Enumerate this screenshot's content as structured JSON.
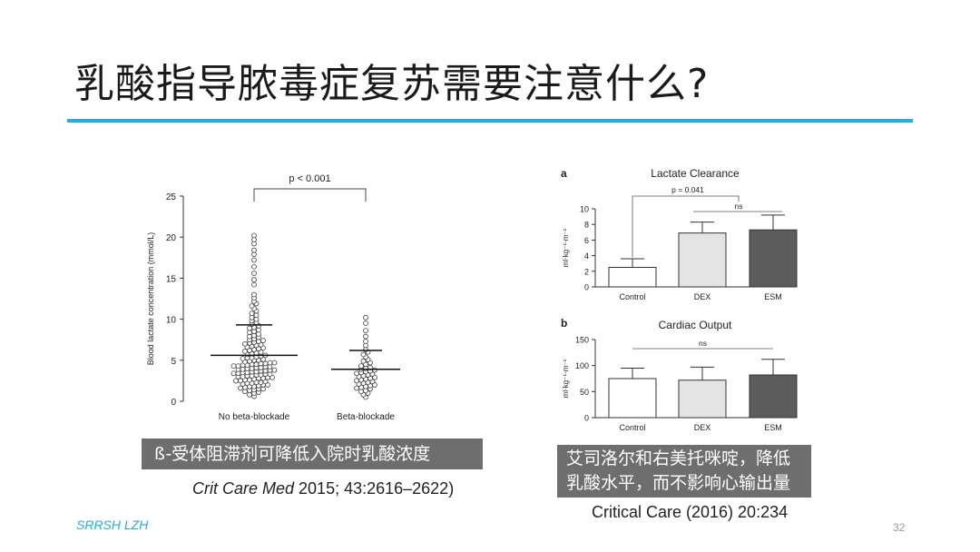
{
  "slide": {
    "title": "乳酸指导脓毒症复苏需要注意什么?",
    "accent_color": "#2da9d8",
    "footer": "SRRSH LZH",
    "footer_color": "#2da9d8",
    "page_number": "32"
  },
  "left_panel": {
    "caption": "ß-受体阻滞剂可降低入院时乳酸浓度",
    "citation_journal": "Crit Care Med",
    "citation_rest": " 2015; 43:2616–2622)"
  },
  "right_panel": {
    "caption_line1": "艾司洛尔和右美托咪啶，降低",
    "caption_line2": "乳酸水平，而不影响心输出量",
    "citation": "Critical Care (2016) 20:234"
  },
  "chart_data": [
    {
      "type": "scatter",
      "ylabel": "Blood lactate concentration (mmol/L)",
      "ylim": [
        0,
        25
      ],
      "yticks": [
        "0",
        "5",
        "10",
        "15",
        "20",
        "25"
      ],
      "categories": [
        "No beta-blockade",
        "Beta-blockade"
      ],
      "annotation": "p < 0.001",
      "groups": [
        {
          "category": "No beta-blockade",
          "mean": 5.6,
          "upper": 9.3,
          "points": [
            0.6,
            0.8,
            1.0,
            1.1,
            1.2,
            1.3,
            1.4,
            1.5,
            1.5,
            1.6,
            1.7,
            1.8,
            1.8,
            1.9,
            2.0,
            2.0,
            2.1,
            2.2,
            2.2,
            2.3,
            2.3,
            2.4,
            2.5,
            2.5,
            2.6,
            2.6,
            2.7,
            2.8,
            2.8,
            2.9,
            2.9,
            3.0,
            3.0,
            3.1,
            3.1,
            3.2,
            3.2,
            3.3,
            3.3,
            3.4,
            3.4,
            3.5,
            3.5,
            3.6,
            3.6,
            3.7,
            3.7,
            3.8,
            3.8,
            3.9,
            3.9,
            4.0,
            4.0,
            4.1,
            4.1,
            4.2,
            4.2,
            4.3,
            4.3,
            4.4,
            4.4,
            4.5,
            4.5,
            4.6,
            4.6,
            4.7,
            4.7,
            4.8,
            4.9,
            5.0,
            5.0,
            5.1,
            5.2,
            5.3,
            5.3,
            5.4,
            5.5,
            5.6,
            5.7,
            5.8,
            5.9,
            6.0,
            6.1,
            6.2,
            6.3,
            6.4,
            6.5,
            6.6,
            6.7,
            6.8,
            6.9,
            7.0,
            7.1,
            7.2,
            7.3,
            7.4,
            7.5,
            7.6,
            7.8,
            7.9,
            8.0,
            8.2,
            8.4,
            8.5,
            8.7,
            8.9,
            9.0,
            9.2,
            9.4,
            9.6,
            9.8,
            10.0,
            10.2,
            10.5,
            10.7,
            11.0,
            11.3,
            11.6,
            11.9,
            12.2,
            12.6,
            13.0,
            14.2,
            14.8,
            15.6,
            16.4,
            17.2,
            17.9,
            18.4,
            19.2,
            19.7,
            20.2
          ]
        },
        {
          "category": "Beta-blockade",
          "mean": 3.9,
          "upper": 6.2,
          "points": [
            0.5,
            0.8,
            1.0,
            1.2,
            1.3,
            1.5,
            1.6,
            1.7,
            1.8,
            1.9,
            2.0,
            2.1,
            2.2,
            2.3,
            2.4,
            2.5,
            2.6,
            2.7,
            2.8,
            2.9,
            3.0,
            3.1,
            3.2,
            3.3,
            3.4,
            3.5,
            3.6,
            3.7,
            3.8,
            3.9,
            4.0,
            4.1,
            4.3,
            4.5,
            4.7,
            4.9,
            5.1,
            5.4,
            5.7,
            6.0,
            6.3,
            6.8,
            7.3,
            7.9,
            8.6,
            9.5,
            10.2
          ]
        }
      ]
    },
    {
      "type": "bar",
      "panel_label": "a",
      "title": "Lactate Clearance",
      "ylabel": "ml·kg⁻¹·m⁻¹",
      "ylim": [
        0,
        10
      ],
      "yticks": [
        "0",
        "2",
        "4",
        "6",
        "8",
        "10"
      ],
      "categories": [
        "Control",
        "DEX",
        "ESM"
      ],
      "values": [
        2.5,
        6.9,
        7.3
      ],
      "errors": [
        1.1,
        1.4,
        1.9
      ],
      "colors": [
        "#ffffff",
        "#e4e4e4",
        "#5c5c5c"
      ],
      "annotations": [
        "p = 0.041",
        "ns"
      ]
    },
    {
      "type": "bar",
      "panel_label": "b",
      "title": "Cardiac Output",
      "ylabel": "ml·kg⁻¹·m⁻¹",
      "ylim": [
        0,
        150
      ],
      "yticks": [
        "0",
        "50",
        "100",
        "150"
      ],
      "categories": [
        "Control",
        "DEX",
        "ESM"
      ],
      "values": [
        75,
        72,
        82
      ],
      "errors": [
        20,
        25,
        30
      ],
      "colors": [
        "#ffffff",
        "#e4e4e4",
        "#5c5c5c"
      ],
      "annotations": [
        "ns"
      ]
    }
  ]
}
